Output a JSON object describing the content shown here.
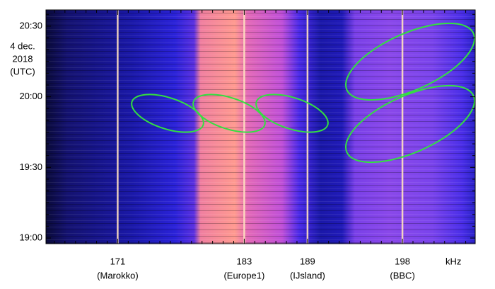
{
  "chart_data": {
    "type": "spectrogram",
    "x_label": "kHz",
    "y_label": [
      "4 dec.",
      "2018",
      "(UTC)"
    ],
    "xlim": [
      164.2,
      204.9
    ],
    "xticks": [
      171,
      183,
      189,
      198
    ],
    "xtick_sublabels": [
      "(Marokko)",
      "(Europe1)",
      "(IJsland)",
      "(BBC)"
    ],
    "xminorticks": [
      165,
      166,
      167,
      168,
      169,
      170,
      172,
      173,
      174,
      175,
      176,
      177,
      178,
      179,
      180,
      181,
      182,
      184,
      185,
      186,
      187,
      188,
      190,
      191,
      192,
      193,
      194,
      195,
      196,
      197,
      199,
      200,
      201,
      202,
      203,
      204
    ],
    "ylim": [
      1137.6,
      1236.9
    ],
    "yticks": [
      {
        "value": 1140,
        "label": "19:00"
      },
      {
        "value": 1170,
        "label": "19:30"
      },
      {
        "value": 1200,
        "label": "20:00"
      },
      {
        "value": 1230,
        "label": "20:30"
      }
    ],
    "yminorticks": [
      1145,
      1150,
      1155,
      1160,
      1165,
      1175,
      1180,
      1185,
      1190,
      1195,
      1205,
      1210,
      1215,
      1220,
      1225,
      1235
    ]
  }
}
